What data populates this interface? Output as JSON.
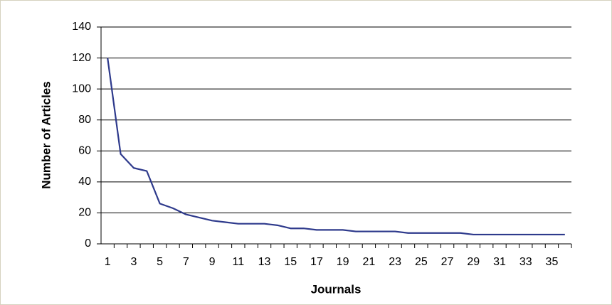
{
  "chart_data": {
    "type": "line",
    "x_label": "Journals",
    "y_label": "Number of Articles",
    "categories": [
      "1",
      null,
      "3",
      null,
      "5",
      null,
      "7",
      null,
      "9",
      null,
      "11",
      null,
      "13",
      null,
      "15",
      null,
      "17",
      null,
      "19",
      null,
      "21",
      null,
      "23",
      null,
      "25",
      null,
      "27",
      null,
      "29",
      null,
      "31",
      null,
      "33",
      null,
      "35",
      null
    ],
    "values": [
      120,
      58,
      49,
      47,
      26,
      23,
      19,
      17,
      15,
      14,
      13,
      13,
      13,
      12,
      10,
      10,
      9,
      9,
      9,
      8,
      8,
      8,
      8,
      7,
      7,
      7,
      7,
      7,
      6,
      6,
      6,
      6,
      6,
      6,
      6,
      6
    ],
    "color": "#2e3a8c",
    "ylim": [
      0,
      140
    ],
    "yticks": [
      0,
      20,
      40,
      60,
      80,
      100,
      120,
      140
    ],
    "grid": true
  }
}
